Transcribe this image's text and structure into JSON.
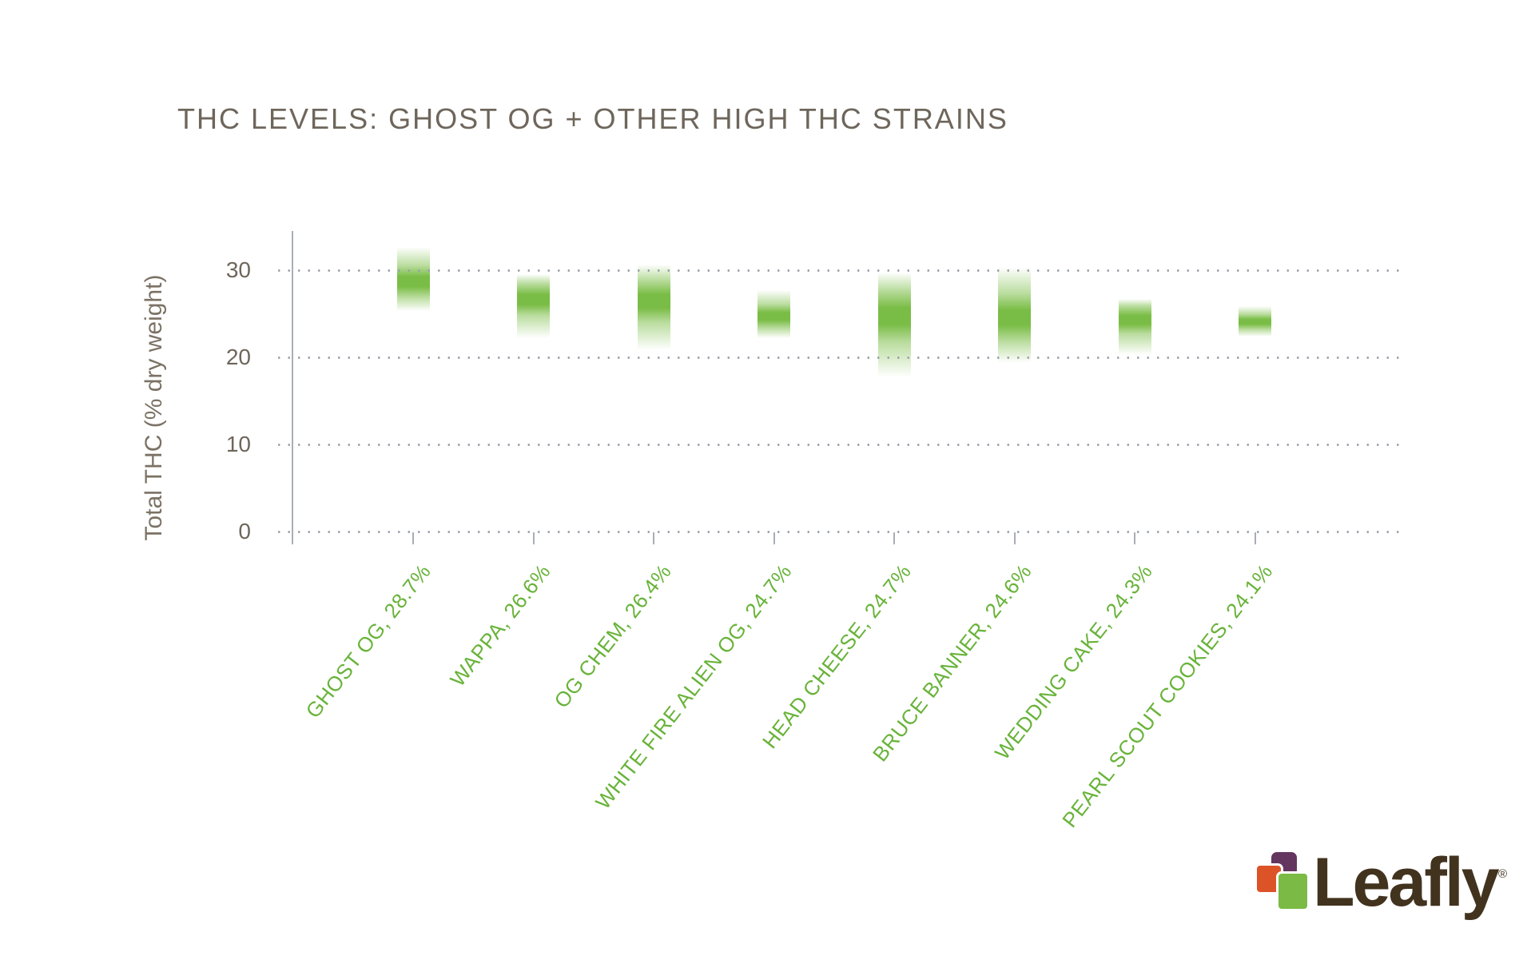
{
  "title": "THC LEVELS: GHOST OG + OTHER HIGH THC STRAINS",
  "y_axis": {
    "title": "Total THC (% dry weight)",
    "ticks": [
      30,
      20,
      10,
      0
    ],
    "unit": "% dry weight"
  },
  "chart_data": {
    "type": "bar",
    "title": "THC LEVELS: GHOST OG + OTHER HIGH THC STRAINS",
    "xlabel": "",
    "ylabel": "Total THC (% dry weight)",
    "ylim": [
      0,
      34.5
    ],
    "yticks": [
      0,
      10,
      20,
      30
    ],
    "grid": "horizontal dotted gridlines at each y tick",
    "legend": "none",
    "bar_style": "vertical gradient band fading to white at both ends, darkest at the strain's average THC value",
    "categories": [
      "GHOST OG",
      "WAPPA",
      "OG CHEM",
      "WHITE FIRE ALIEN OG",
      "HEAD CHEESE",
      "BRUCE BANNER",
      "WEDDING CAKE",
      "PEARL SCOUT COOKIES"
    ],
    "points": [
      {
        "label": "GHOST OG",
        "value": 28.7,
        "range_high": 32.7,
        "range_low": 25.3
      },
      {
        "label": "WAPPA",
        "value": 26.6,
        "range_high": 29.5,
        "range_low": 22.2
      },
      {
        "label": "OG CHEM",
        "value": 26.4,
        "range_high": 30.6,
        "range_low": 20.8
      },
      {
        "label": "WHITE FIRE ALIEN OG",
        "value": 24.7,
        "range_high": 27.7,
        "range_low": 22.2
      },
      {
        "label": "HEAD CHEESE",
        "value": 24.7,
        "range_high": 29.7,
        "range_low": 17.7
      },
      {
        "label": "BRUCE BANNER",
        "value": 24.6,
        "range_high": 30.4,
        "range_low": 19.4
      },
      {
        "label": "WEDDING CAKE",
        "value": 24.3,
        "range_high": 26.7,
        "range_low": 20.3
      },
      {
        "label": "PEARL SCOUT COOKIES",
        "value": 24.1,
        "range_high": 25.9,
        "range_low": 22.4
      }
    ],
    "value_suffix": "%"
  },
  "colors": {
    "bar_green": "#76bb40",
    "label_green": "#68b339",
    "title_gray": "#6e665b",
    "axis_title_gray": "#7b7265",
    "grid_dot": "#9aa0a8",
    "axis_line": "#a9aeb6",
    "logo_purple": "#63355f",
    "logo_orange": "#dd5328",
    "logo_green": "#7aba45",
    "logo_brown": "#42331f"
  },
  "logo": {
    "text": "Leafly",
    "registered_mark": "®"
  }
}
